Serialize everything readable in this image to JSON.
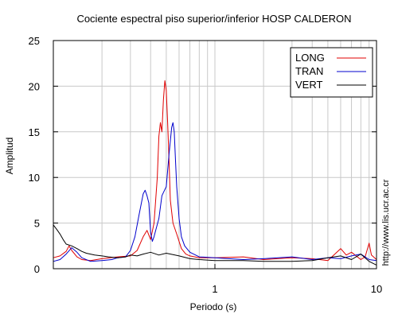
{
  "chart_data": {
    "type": "line",
    "title": "Cociente espectral piso superior/inferior  HOSP CALDERON",
    "xlabel": "Periodo (s)",
    "ylabel": "Amplitud",
    "xscale": "log",
    "xlim": [
      0.1,
      10
    ],
    "ylim": [
      0,
      25
    ],
    "x_ticks": [
      1,
      10
    ],
    "x_tick_labels": [
      "1",
      "10"
    ],
    "y_ticks": [
      0,
      5,
      10,
      15,
      20,
      25
    ],
    "y_tick_labels": [
      "0",
      "5",
      "10",
      "15",
      "20",
      "25"
    ],
    "grid": true,
    "legend_position": "top-right",
    "watermark": "http://www.lis.ucr.ac.cr",
    "series": [
      {
        "name": "LONG",
        "color": "#e00000",
        "x": [
          0.1,
          0.11,
          0.12,
          0.125,
          0.13,
          0.14,
          0.15,
          0.17,
          0.2,
          0.25,
          0.3,
          0.33,
          0.36,
          0.38,
          0.4,
          0.42,
          0.44,
          0.45,
          0.46,
          0.47,
          0.48,
          0.49,
          0.5,
          0.51,
          0.52,
          0.53,
          0.55,
          0.58,
          0.62,
          0.66,
          0.7,
          0.8,
          1,
          1.5,
          2,
          3,
          4,
          5,
          6,
          6.5,
          7,
          8,
          8.5,
          9,
          9.3,
          10
        ],
        "y": [
          1.2,
          1.4,
          1.9,
          2.5,
          2.0,
          1.3,
          1.0,
          0.9,
          1.1,
          1.3,
          1.4,
          2.0,
          3.5,
          4.2,
          3.2,
          5.0,
          10.0,
          14.5,
          16.0,
          15.0,
          18.5,
          20.6,
          19.5,
          16.0,
          12.0,
          7.5,
          5.0,
          3.8,
          2.2,
          1.6,
          1.4,
          1.2,
          1.2,
          1.3,
          1.0,
          1.2,
          1.1,
          0.9,
          2.2,
          1.5,
          1.8,
          1.0,
          1.3,
          2.8,
          1.5,
          1.0
        ]
      },
      {
        "name": "TRAN",
        "color": "#0000cc",
        "x": [
          0.1,
          0.11,
          0.12,
          0.13,
          0.14,
          0.15,
          0.17,
          0.2,
          0.23,
          0.25,
          0.28,
          0.3,
          0.32,
          0.34,
          0.36,
          0.37,
          0.38,
          0.39,
          0.4,
          0.41,
          0.42,
          0.43,
          0.45,
          0.47,
          0.5,
          0.52,
          0.54,
          0.55,
          0.56,
          0.57,
          0.58,
          0.6,
          0.62,
          0.65,
          0.7,
          0.8,
          1,
          1.5,
          2,
          3,
          4,
          5,
          6,
          7,
          8,
          9,
          10
        ],
        "y": [
          0.8,
          1.0,
          1.6,
          2.3,
          1.8,
          1.2,
          0.8,
          0.9,
          1.0,
          1.2,
          1.3,
          2.0,
          3.5,
          6.0,
          8.2,
          8.6,
          8.0,
          7.2,
          4.0,
          3.0,
          3.5,
          4.2,
          5.5,
          8.0,
          9.0,
          12.5,
          15.5,
          16.0,
          15.0,
          12.0,
          9.0,
          5.5,
          3.5,
          2.5,
          1.8,
          1.3,
          1.2,
          1.0,
          1.1,
          1.3,
          1.0,
          1.2,
          1.1,
          1.4,
          1.6,
          1.0,
          0.9
        ]
      },
      {
        "name": "VERT",
        "color": "#000000",
        "x": [
          0.1,
          0.105,
          0.11,
          0.115,
          0.12,
          0.13,
          0.14,
          0.15,
          0.16,
          0.18,
          0.2,
          0.22,
          0.25,
          0.28,
          0.3,
          0.33,
          0.36,
          0.4,
          0.45,
          0.5,
          0.6,
          0.7,
          0.8,
          1,
          1.5,
          2,
          3,
          4,
          5,
          6,
          7,
          8,
          9,
          10
        ],
        "y": [
          4.8,
          4.3,
          3.8,
          3.2,
          2.7,
          2.5,
          2.2,
          1.9,
          1.7,
          1.5,
          1.4,
          1.3,
          1.2,
          1.3,
          1.5,
          1.4,
          1.6,
          1.8,
          1.5,
          1.7,
          1.4,
          1.1,
          1.0,
          0.9,
          0.9,
          0.8,
          0.8,
          0.9,
          1.2,
          1.4,
          1.0,
          1.6,
          0.8,
          0.4
        ]
      }
    ]
  }
}
